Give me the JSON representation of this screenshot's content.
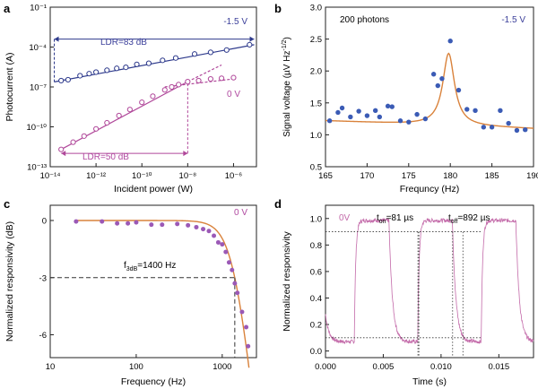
{
  "figure": {
    "panel_labels": [
      "a",
      "b",
      "c",
      "d"
    ]
  },
  "colors": {
    "blue_series": "#2e3a8c",
    "blue_text": "#3b3f9a",
    "magenta_series": "#b0489a",
    "magenta_text": "#b04aa0",
    "dot_blue": "#3b5bb5",
    "fit_orange": "#d9823b",
    "dot_purple": "#9b59b6",
    "trace_pink": "#c36aa9",
    "axis": "#222222",
    "dashed": "#333333"
  },
  "chart_data": [
    {
      "panel": "a",
      "type": "scatter",
      "x_scale": "log",
      "y_scale": "log",
      "xlabel": "Incident power (W)",
      "ylabel": "Photocurrent (A)",
      "xlim": [
        1e-14,
        1e-05
      ],
      "ylim": [
        1e-13,
        0.1
      ],
      "x_ticks": [
        1e-14,
        1e-12,
        1e-10,
        1e-08,
        1e-06
      ],
      "x_tick_labels": [
        "10⁻¹⁴",
        "10⁻¹²",
        "10⁻¹⁰",
        "10⁻⁸",
        "10⁻⁶"
      ],
      "y_ticks": [
        0.1,
        0.0001,
        1e-07,
        1e-10,
        1e-13
      ],
      "y_tick_labels": [
        "10⁻¹",
        "10⁻⁴",
        "10⁻⁷",
        "10⁻¹⁰",
        "10⁻¹³"
      ],
      "annotations": {
        "ldr_top": "LDR=83 dB",
        "ldr_bottom": "LDR=50 dB",
        "bias_top": "-1.5 V",
        "bias_bottom": "0 V"
      },
      "series": [
        {
          "name": "-1.5 V",
          "x": [
            3e-14,
            6e-14,
            2e-13,
            5e-13,
            1e-12,
            3e-12,
            8e-12,
            2e-11,
            6e-11,
            2e-10,
            8e-10,
            3e-09,
            2e-08,
            1e-07,
            5e-07,
            5e-06
          ],
          "y": [
            3e-07,
            3.5e-07,
            7e-07,
            1e-06,
            1.3e-06,
            1.8e-06,
            2.5e-06,
            3e-06,
            5e-06,
            6e-06,
            1e-05,
            1.5e-05,
            3e-05,
            4e-05,
            6e-05,
            0.00015
          ]
        },
        {
          "name": "0 V",
          "x": [
            3e-14,
            1e-13,
            3e-13,
            1e-12,
            3e-12,
            1e-11,
            3e-11,
            1e-10,
            3e-10,
            1e-09,
            2e-09,
            4e-09,
            1e-08,
            3e-08,
            1e-07,
            3e-07,
            1e-06
          ],
          "y": [
            2e-12,
            7e-12,
            2e-11,
            7e-11,
            2e-10,
            7e-10,
            2e-09,
            7e-09,
            2e-08,
            6e-08,
            1e-07,
            1.5e-07,
            2.5e-07,
            3e-07,
            4e-07,
            4.5e-07,
            5e-07
          ]
        }
      ],
      "fits": [
        {
          "name": "fit -1.5 V",
          "x": [
            1.5e-14,
            8e-06
          ],
          "y": [
            2.4e-07,
            0.00015
          ],
          "style": "solid"
        },
        {
          "name": "fit 0 V",
          "x": [
            3e-14,
            1e-08
          ],
          "y": [
            2e-12,
            2.5e-07
          ],
          "style": "solid"
        },
        {
          "name": "ext 0 V",
          "x": [
            1e-08,
            3e-07
          ],
          "y": [
            2.5e-07,
            4.5e-06
          ],
          "style": "dashed"
        },
        {
          "name": "sat 0 V",
          "x": [
            1e-09,
            1e-06
          ],
          "y": [
            1e-07,
            4e-07
          ],
          "style": "dashed"
        }
      ],
      "ldr_top_range": [
        1.5e-14,
        8e-06
      ],
      "ldr_bottom_range": [
        3e-14,
        1e-08
      ]
    },
    {
      "panel": "b",
      "type": "scatter",
      "xlabel": "Frequncy (Hz)",
      "ylabel": "Signal voltage (µV Hz",
      "ylabel_sup": "-1/2",
      "ylabel_end": ")",
      "xlim": [
        165,
        190
      ],
      "ylim": [
        0.5,
        3.0
      ],
      "x_ticks": [
        165,
        170,
        175,
        180,
        185,
        190
      ],
      "y_ticks": [
        0.5,
        1.0,
        1.5,
        2.0,
        2.5,
        3.0
      ],
      "y_tick_labels": [
        "0.5",
        "1.0",
        "1.5",
        "2.0",
        "2.5",
        "3.0"
      ],
      "annotations": {
        "photons": "200 photons",
        "bias": "-1.5 V"
      },
      "series": [
        {
          "name": "data",
          "x": [
            165.5,
            166.5,
            167.0,
            168.0,
            169.0,
            170.0,
            171.0,
            171.5,
            172.5,
            173.0,
            174.0,
            175.0,
            176.0,
            177.0,
            178.0,
            178.5,
            179.0,
            180.0,
            181.0,
            182.0,
            183.0,
            184.0,
            185.0,
            186.0,
            187.0,
            188.0,
            189.0
          ],
          "y": [
            1.22,
            1.35,
            1.42,
            1.28,
            1.37,
            1.3,
            1.38,
            1.28,
            1.45,
            1.44,
            1.22,
            1.2,
            1.32,
            1.25,
            1.95,
            1.77,
            1.88,
            2.47,
            1.7,
            1.4,
            1.38,
            1.12,
            1.12,
            1.38,
            1.18,
            1.07,
            1.08
          ]
        }
      ]
    },
    {
      "panel": "c",
      "type": "scatter",
      "x_scale": "log",
      "xlabel": "Frequency (Hz)",
      "ylabel": "Normalized responsivity (dB)",
      "xlim": [
        10,
        2500
      ],
      "ylim": [
        -7.2,
        0.8
      ],
      "x_ticks": [
        10,
        100,
        1000
      ],
      "x_tick_labels": [
        "10",
        "100",
        "1000"
      ],
      "y_ticks": [
        0,
        -3,
        -6
      ],
      "y_tick_labels": [
        "0",
        "-3",
        "-6"
      ],
      "annotations": {
        "f3db": "f",
        "f3db_sub": "3dB",
        "f3db_value": "=1400 Hz",
        "bias": "0 V"
      },
      "f3db_hz": 1400,
      "series": [
        {
          "name": "data",
          "x": [
            20,
            40,
            60,
            80,
            100,
            150,
            200,
            300,
            400,
            500,
            600,
            700,
            800,
            900,
            1000,
            1100,
            1200,
            1300,
            1400,
            1500,
            1700,
            1900,
            2000
          ],
          "y": [
            -0.05,
            -0.05,
            -0.15,
            -0.15,
            -0.1,
            -0.22,
            -0.22,
            -0.18,
            -0.25,
            -0.35,
            -0.45,
            -0.55,
            -0.8,
            -1.15,
            -1.25,
            -1.65,
            -2.2,
            -2.6,
            -3.3,
            -3.8,
            -4.8,
            -5.6,
            -6.6
          ]
        }
      ]
    },
    {
      "panel": "d",
      "type": "line",
      "xlabel": "Time (s)",
      "ylabel": "Normalized responsivity",
      "xlim": [
        0.0,
        0.018
      ],
      "ylim": [
        -0.05,
        1.1
      ],
      "x_ticks": [
        0.0,
        0.005,
        0.01,
        0.015
      ],
      "x_tick_labels": [
        "0.000",
        "0.005",
        "0.010",
        "0.015"
      ],
      "y_ticks": [
        0.0,
        0.2,
        0.4,
        0.6,
        0.8,
        1.0
      ],
      "y_tick_labels": [
        "0.0",
        "0.2",
        "0.4",
        "0.6",
        "0.8",
        "1.0"
      ],
      "annotations": {
        "bias": "0V",
        "t_on": "t",
        "t_on_sub": "on",
        "t_on_value": "=81 µs",
        "t_off": "t",
        "t_off_sub": "off",
        "t_off_value": "=892 µs"
      },
      "pulses": [
        {
          "on": 0.0025,
          "off": 0.0055
        },
        {
          "on": 0.008,
          "off": 0.011
        },
        {
          "on": 0.0135,
          "off": 0.0165
        }
      ],
      "t_on_s": 8.1e-05,
      "t_off_s": 0.000892,
      "levels": {
        "low": 0.1,
        "high": 0.9
      }
    }
  ]
}
